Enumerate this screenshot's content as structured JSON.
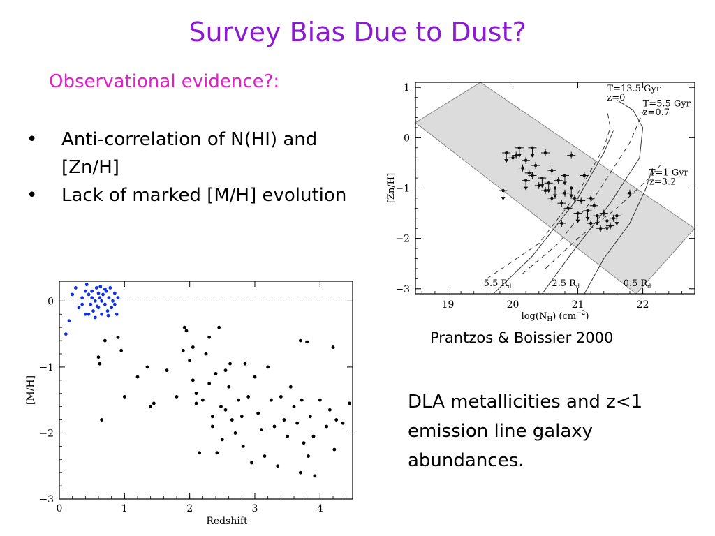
{
  "slide": {
    "title": "Survey Bias Due to Dust?",
    "subtitle": "Observational evidence?:",
    "bullets": [
      "Anti-correlation of N(HI) and [Zn/H]",
      "Lack of marked [M/H] evolution"
    ],
    "bullet_symbol": "•",
    "caption": "Prantzos & Boissier 2000",
    "note": "DLA metallicities and z<1 emission line galaxy abundances.",
    "colors": {
      "title": "#8a1ccf",
      "subtitle": "#e020c8",
      "blue_points": "#1030e0"
    }
  },
  "chart_data": [
    {
      "type": "scatter",
      "xlabel": "log(N_H) (cm^-2)",
      "xlabel_main": "log(N",
      "xlabel_sub": "H",
      "xlabel_tail": ") (cm",
      "xlabel_sup": "−2",
      "xlabel_end": ")",
      "ylabel": "[Zn/H]",
      "xlim": [
        18.5,
        22.8
      ],
      "ylim": [
        -3.1,
        1.1
      ],
      "x_ticks": [
        "19",
        "20",
        "21",
        "22"
      ],
      "y_ticks": [
        "1",
        "0",
        "−1",
        "−2",
        "−3"
      ],
      "x_tick_values": [
        19,
        20,
        21,
        22
      ],
      "y_tick_values": [
        1,
        0,
        -1,
        -2,
        -3
      ],
      "band": {
        "upper": [
          [
            19.5,
            1.1
          ],
          [
            22.8,
            -1.8
          ]
        ],
        "lower": [
          [
            18.5,
            0.3
          ],
          [
            21.9,
            -3.1
          ]
        ]
      },
      "annotations": [
        {
          "text": "T=13.5 Gyr",
          "x": 21.45,
          "y": 0.92
        },
        {
          "text": "z=0",
          "x": 21.45,
          "y": 0.74
        },
        {
          "text": "T=5.5 Gyr",
          "x": 22.0,
          "y": 0.62
        },
        {
          "text": "z=0.7",
          "x": 22.0,
          "y": 0.45
        },
        {
          "text": "T=1 Gyr",
          "x": 22.1,
          "y": -0.75
        },
        {
          "text": "z=3.2",
          "x": 22.1,
          "y": -0.93
        },
        {
          "text": "5.5 R",
          "x": 19.55,
          "y": -2.95
        },
        {
          "text": "2.5 R",
          "x": 20.6,
          "y": -2.95
        },
        {
          "text": "0.5 R",
          "x": 21.7,
          "y": -2.95
        }
      ],
      "annotation_sub": "d",
      "curves": {
        "solid": [
          [
            [
              19.7,
              -3.1
            ],
            [
              20.3,
              -2.35
            ],
            [
              21.0,
              -1.2
            ],
            [
              21.4,
              -0.3
            ],
            [
              21.55,
              0.15
            ]
          ],
          [
            [
              20.45,
              -3.1
            ],
            [
              20.9,
              -2.3
            ],
            [
              21.5,
              -1.3
            ],
            [
              21.95,
              -0.4
            ],
            [
              22.0,
              0.2
            ],
            [
              21.85,
              0.55
            ],
            [
              21.6,
              0.75
            ]
          ],
          [
            [
              21.1,
              -3.1
            ],
            [
              21.4,
              -2.4
            ],
            [
              21.8,
              -1.7
            ],
            [
              22.05,
              -1.0
            ],
            [
              22.15,
              -0.6
            ]
          ]
        ],
        "dashed": [
          [
            [
              19.6,
              -2.8
            ],
            [
              20.4,
              -2.1
            ],
            [
              21.0,
              -1.1
            ],
            [
              21.4,
              -0.2
            ],
            [
              21.5,
              0.2
            ],
            [
              21.45,
              0.55
            ]
          ],
          [
            [
              20.15,
              -2.7
            ],
            [
              20.7,
              -2.1
            ],
            [
              21.3,
              -1.1
            ],
            [
              21.8,
              -0.1
            ],
            [
              22.0,
              0.5
            ]
          ],
          [
            [
              20.5,
              -2.6
            ],
            [
              21.0,
              -2.0
            ],
            [
              21.6,
              -1.4
            ],
            [
              22.1,
              -0.8
            ],
            [
              22.3,
              -0.5
            ]
          ]
        ]
      },
      "points": [
        [
          19.9,
          -0.3
        ],
        [
          20.0,
          -0.4
        ],
        [
          20.05,
          -0.35
        ],
        [
          20.1,
          -0.2
        ],
        [
          20.15,
          -0.6
        ],
        [
          20.2,
          -0.45
        ],
        [
          20.2,
          -0.85
        ],
        [
          20.25,
          -0.7
        ],
        [
          20.3,
          -0.75
        ],
        [
          20.3,
          -0.2
        ],
        [
          20.35,
          -0.55
        ],
        [
          20.4,
          -0.95
        ],
        [
          20.45,
          -0.8
        ],
        [
          20.5,
          -1.05
        ],
        [
          20.5,
          -0.3
        ],
        [
          20.55,
          -0.9
        ],
        [
          20.6,
          -0.65
        ],
        [
          20.6,
          -1.2
        ],
        [
          20.65,
          -1.0
        ],
        [
          20.7,
          -0.85
        ],
        [
          20.75,
          -1.3
        ],
        [
          20.8,
          -0.75
        ],
        [
          20.8,
          -1.1
        ],
        [
          20.85,
          -1.4
        ],
        [
          20.9,
          -1.0
        ],
        [
          20.9,
          -0.35
        ],
        [
          20.95,
          -1.2
        ],
        [
          21.0,
          -1.5
        ],
        [
          21.05,
          -1.25
        ],
        [
          21.1,
          -0.75
        ],
        [
          21.15,
          -1.45
        ],
        [
          21.2,
          -1.7
        ],
        [
          21.25,
          -1.35
        ],
        [
          21.3,
          -1.55
        ],
        [
          21.35,
          -1.8
        ],
        [
          21.4,
          -1.5
        ],
        [
          21.45,
          -1.65
        ],
        [
          21.5,
          -1.75
        ],
        [
          21.55,
          -1.6
        ],
        [
          21.6,
          -1.55
        ],
        [
          21.8,
          -1.1
        ],
        [
          20.75,
          -1.7
        ],
        [
          19.85,
          -1.05
        ],
        [
          21.2,
          -1.2
        ]
      ]
    },
    {
      "type": "scatter",
      "xlabel": "Redshift",
      "ylabel": "[M/H]",
      "xlim": [
        0,
        4.5
      ],
      "ylim": [
        -3,
        0.3
      ],
      "x_ticks": [
        "0",
        "1",
        "2",
        "3",
        "4"
      ],
      "y_ticks": [
        "0",
        "−1",
        "−2",
        "−3"
      ],
      "x_tick_values": [
        0,
        1,
        2,
        3,
        4
      ],
      "y_tick_values": [
        0,
        -1,
        -2,
        -3
      ],
      "reference_line": 0,
      "series": [
        {
          "color": "#1030e0",
          "points": [
            [
              0.1,
              -0.5
            ],
            [
              0.15,
              -0.3
            ],
            [
              0.2,
              0.1
            ],
            [
              0.25,
              0.2
            ],
            [
              0.3,
              -0.1
            ],
            [
              0.35,
              0.05
            ],
            [
              0.4,
              -0.2
            ],
            [
              0.42,
              0.25
            ],
            [
              0.45,
              0.1
            ],
            [
              0.48,
              -0.05
            ],
            [
              0.5,
              0.15
            ],
            [
              0.52,
              -0.15
            ],
            [
              0.55,
              0.0
            ],
            [
              0.57,
              0.2
            ],
            [
              0.6,
              -0.1
            ],
            [
              0.62,
              0.05
            ],
            [
              0.63,
              0.22
            ],
            [
              0.65,
              -0.2
            ],
            [
              0.67,
              0.1
            ],
            [
              0.7,
              -0.05
            ],
            [
              0.72,
              0.15
            ],
            [
              0.74,
              -0.15
            ],
            [
              0.76,
              0.05
            ],
            [
              0.78,
              0.2
            ],
            [
              0.8,
              -0.1
            ],
            [
              0.82,
              0.0
            ],
            [
              0.85,
              0.12
            ],
            [
              0.88,
              -0.2
            ],
            [
              0.9,
              0.05
            ],
            [
              0.45,
              -0.2
            ],
            [
              0.55,
              -0.25
            ],
            [
              0.6,
              0.12
            ],
            [
              0.7,
              0.18
            ],
            [
              0.75,
              -0.22
            ],
            [
              0.5,
              0.05
            ],
            [
              0.35,
              -0.05
            ],
            [
              0.65,
              0.0
            ],
            [
              0.85,
              -0.05
            ],
            [
              0.4,
              0.15
            ],
            [
              0.58,
              -0.08
            ]
          ]
        },
        {
          "color": "#000000",
          "points": [
            [
              0.6,
              -0.85
            ],
            [
              0.62,
              -0.95
            ],
            [
              0.65,
              -1.8
            ],
            [
              0.7,
              -0.6
            ],
            [
              0.9,
              -0.55
            ],
            [
              0.95,
              -0.75
            ],
            [
              1.0,
              -1.45
            ],
            [
              1.2,
              -1.15
            ],
            [
              1.35,
              -1.0
            ],
            [
              1.4,
              -1.6
            ],
            [
              1.45,
              -1.55
            ],
            [
              1.65,
              -1.05
            ],
            [
              1.8,
              -1.45
            ],
            [
              1.9,
              -0.75
            ],
            [
              1.92,
              -0.4
            ],
            [
              1.95,
              -0.45
            ],
            [
              2.0,
              -0.9
            ],
            [
              2.05,
              -1.2
            ],
            [
              2.1,
              -1.4
            ],
            [
              2.15,
              -2.3
            ],
            [
              2.2,
              -1.5
            ],
            [
              2.25,
              -0.8
            ],
            [
              2.3,
              -1.25
            ],
            [
              2.35,
              -1.9
            ],
            [
              2.4,
              -1.1
            ],
            [
              2.42,
              -2.3
            ],
            [
              2.45,
              -0.4
            ],
            [
              2.48,
              -1.6
            ],
            [
              2.5,
              -2.1
            ],
            [
              2.55,
              -1.65
            ],
            [
              2.6,
              -1.3
            ],
            [
              2.62,
              -0.95
            ],
            [
              2.65,
              -1.8
            ],
            [
              2.7,
              -2.0
            ],
            [
              2.75,
              -1.5
            ],
            [
              2.8,
              -1.75
            ],
            [
              2.82,
              -2.2
            ],
            [
              2.85,
              -0.95
            ],
            [
              2.9,
              -1.45
            ],
            [
              2.95,
              -2.45
            ],
            [
              3.0,
              -1.15
            ],
            [
              3.05,
              -1.7
            ],
            [
              3.1,
              -1.95
            ],
            [
              3.15,
              -2.35
            ],
            [
              3.2,
              -1.0
            ],
            [
              3.25,
              -1.5
            ],
            [
              3.3,
              -1.9
            ],
            [
              3.35,
              -2.5
            ],
            [
              3.4,
              -1.45
            ],
            [
              3.45,
              -1.8
            ],
            [
              3.5,
              -2.05
            ],
            [
              3.6,
              -1.6
            ],
            [
              3.65,
              -1.85
            ],
            [
              3.7,
              -0.6
            ],
            [
              3.72,
              -1.5
            ],
            [
              3.75,
              -2.15
            ],
            [
              3.8,
              -0.62
            ],
            [
              3.82,
              -2.35
            ],
            [
              3.85,
              -1.75
            ],
            [
              3.9,
              -2.05
            ],
            [
              3.92,
              -2.65
            ],
            [
              4.0,
              -1.5
            ],
            [
              4.1,
              -1.9
            ],
            [
              4.15,
              -1.65
            ],
            [
              4.2,
              -0.7
            ],
            [
              4.22,
              -2.25
            ],
            [
              4.25,
              -1.8
            ],
            [
              4.35,
              -1.85
            ],
            [
              4.45,
              -1.55
            ],
            [
              2.3,
              -0.55
            ],
            [
              2.55,
              -1.05
            ],
            [
              3.7,
              -2.6
            ],
            [
              2.1,
              -1.55
            ],
            [
              2.35,
              -1.75
            ],
            [
              3.55,
              -1.3
            ],
            [
              2.05,
              -0.7
            ]
          ]
        }
      ]
    }
  ]
}
